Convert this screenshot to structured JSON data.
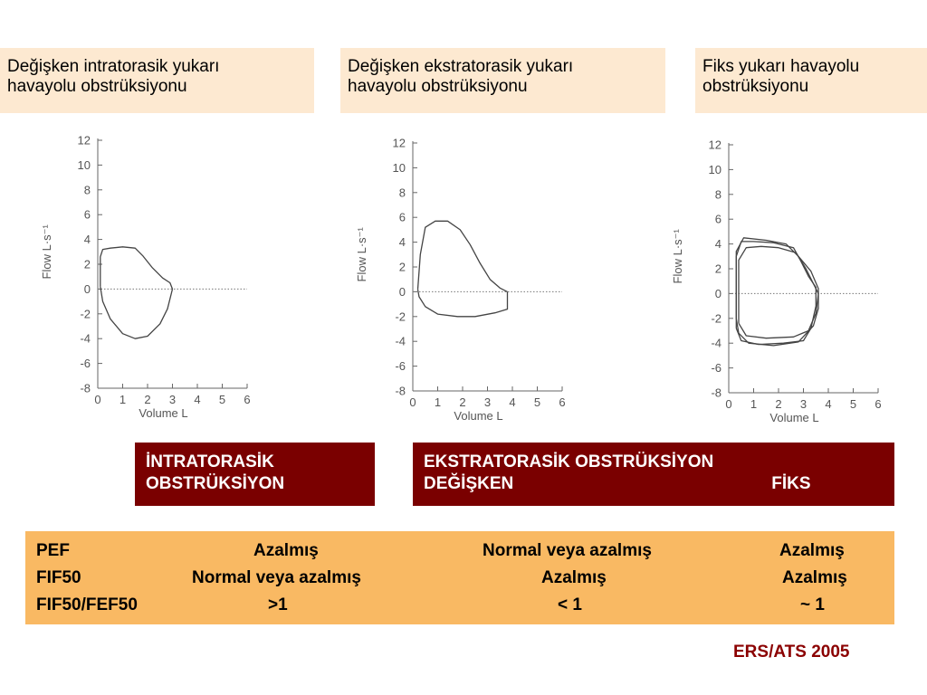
{
  "captions": [
    {
      "line1": "Değişken intratorasik yukarı",
      "line2": "havayolu obstrüksiyonu"
    },
    {
      "line1": "Değişken ekstratorasik yukarı",
      "line2": "havayolu obstrüksiyonu"
    },
    {
      "line1": "Fiks yukarı havayolu",
      "line2": "obstrüksiyonu"
    }
  ],
  "chart_data": [
    {
      "type": "line",
      "xlabel": "Volume L",
      "ylabel": "Flow L·s⁻¹",
      "xlim": [
        0,
        6
      ],
      "ylim": [
        -8,
        12
      ],
      "xticks": [
        "0",
        "1",
        "2",
        "3",
        "4",
        "5",
        "6"
      ],
      "yticks": [
        "12",
        "10",
        "8",
        "6",
        "4",
        "2",
        "0",
        "-2",
        "-4",
        "-6",
        "-8"
      ],
      "baseline": {
        "y": 0,
        "x_end": 6,
        "style": "dotted"
      },
      "series": [
        {
          "values": [
            [
              0.1,
              0.2
            ],
            [
              0.1,
              2.6
            ],
            [
              0.2,
              3.2
            ],
            [
              0.5,
              3.3
            ],
            [
              1.0,
              3.4
            ],
            [
              1.5,
              3.3
            ],
            [
              1.8,
              2.7
            ],
            [
              2.2,
              1.7
            ],
            [
              2.6,
              0.9
            ],
            [
              2.9,
              0.5
            ],
            [
              3.0,
              0.0
            ]
          ]
        },
        {
          "values": [
            [
              3.0,
              0.0
            ],
            [
              2.8,
              -1.6
            ],
            [
              2.5,
              -2.8
            ],
            [
              2.0,
              -3.8
            ],
            [
              1.5,
              -4.0
            ],
            [
              1.0,
              -3.6
            ],
            [
              0.5,
              -2.4
            ],
            [
              0.2,
              -1.0
            ],
            [
              0.1,
              0.2
            ]
          ]
        }
      ]
    },
    {
      "type": "line",
      "xlabel": "Volume L",
      "ylabel": "Flow L·s⁻¹",
      "xlim": [
        0,
        6
      ],
      "ylim": [
        -8,
        12
      ],
      "xticks": [
        "0",
        "1",
        "2",
        "3",
        "4",
        "5",
        "6"
      ],
      "yticks": [
        "12",
        "10",
        "8",
        "6",
        "4",
        "2",
        "0",
        "-2",
        "-4",
        "-6",
        "-8"
      ],
      "baseline": {
        "y": 0,
        "x_end": 6,
        "style": "dotted"
      },
      "series": [
        {
          "values": [
            [
              0.2,
              0.2
            ],
            [
              0.3,
              3.0
            ],
            [
              0.5,
              5.2
            ],
            [
              0.9,
              5.7
            ],
            [
              1.4,
              5.7
            ],
            [
              1.9,
              5.0
            ],
            [
              2.3,
              3.8
            ],
            [
              2.7,
              2.3
            ],
            [
              3.1,
              1.0
            ],
            [
              3.5,
              0.3
            ],
            [
              3.8,
              0.0
            ]
          ]
        },
        {
          "values": [
            [
              3.8,
              0.0
            ],
            [
              3.8,
              -1.4
            ],
            [
              3.3,
              -1.7
            ],
            [
              2.5,
              -2.0
            ],
            [
              1.8,
              -2.0
            ],
            [
              1.0,
              -1.8
            ],
            [
              0.5,
              -1.2
            ],
            [
              0.25,
              -0.4
            ],
            [
              0.2,
              0.2
            ]
          ]
        }
      ]
    },
    {
      "type": "line",
      "xlabel": "Volume L",
      "ylabel": "Flow L·s⁻¹",
      "xlim": [
        0,
        6
      ],
      "ylim": [
        -8,
        12
      ],
      "xticks": [
        "0",
        "1",
        "2",
        "3",
        "4",
        "5",
        "6"
      ],
      "yticks": [
        "12",
        "10",
        "8",
        "6",
        "4",
        "2",
        "0",
        "-2",
        "-4",
        "-6",
        "-8"
      ],
      "baseline": {
        "y": 0,
        "x_end": 6,
        "style": "dotted"
      },
      "series": [
        {
          "values": [
            [
              0.3,
              -2.8
            ],
            [
              0.3,
              3.0
            ],
            [
              0.5,
              4.2
            ],
            [
              1.0,
              4.2
            ],
            [
              1.8,
              4.1
            ],
            [
              2.6,
              3.7
            ],
            [
              2.9,
              2.6
            ],
            [
              3.2,
              1.4
            ],
            [
              3.5,
              0.5
            ],
            [
              3.5,
              -1.0
            ],
            [
              3.3,
              -2.8
            ],
            [
              3.0,
              -3.8
            ],
            [
              2.2,
              -4.0
            ],
            [
              1.2,
              -4.1
            ],
            [
              0.5,
              -3.8
            ],
            [
              0.3,
              -2.8
            ]
          ]
        },
        {
          "values": [
            [
              0.4,
              -2.4
            ],
            [
              0.4,
              2.7
            ],
            [
              0.7,
              3.7
            ],
            [
              1.3,
              3.8
            ],
            [
              2.0,
              3.7
            ],
            [
              2.7,
              3.3
            ],
            [
              3.1,
              2.0
            ],
            [
              3.4,
              0.8
            ],
            [
              3.6,
              0.0
            ],
            [
              3.5,
              -1.6
            ],
            [
              3.2,
              -3.0
            ],
            [
              2.6,
              -3.5
            ],
            [
              1.5,
              -3.6
            ],
            [
              0.7,
              -3.4
            ],
            [
              0.4,
              -2.4
            ]
          ]
        },
        {
          "values": [
            [
              0.3,
              -2.0
            ],
            [
              0.3,
              3.4
            ],
            [
              0.6,
              4.5
            ],
            [
              1.5,
              4.3
            ],
            [
              2.3,
              4.0
            ],
            [
              2.8,
              3.0
            ],
            [
              3.3,
              1.8
            ],
            [
              3.6,
              0.4
            ],
            [
              3.6,
              -1.2
            ],
            [
              3.4,
              -2.6
            ],
            [
              2.8,
              -3.9
            ],
            [
              1.8,
              -4.2
            ],
            [
              0.8,
              -4.0
            ],
            [
              0.4,
              -3.2
            ],
            [
              0.3,
              -2.0
            ]
          ]
        }
      ]
    }
  ],
  "classes": {
    "intra_title_line1": "İNTRATORASİK",
    "intra_title_line2": "OBSTRÜKSİYON",
    "extra_title": "EKSTRATORASİK OBSTRÜKSİYON",
    "extra_variable": "DEĞİŞKEN",
    "extra_fixed": "FİKS"
  },
  "table": {
    "rows": [
      {
        "label": "PEF",
        "intra": "Azalmış",
        "variable": "Normal veya azalmış",
        "fixed": "Azalmış"
      },
      {
        "label": "FIF50",
        "intra": "Normal veya azalmış",
        "variable": "Azalmış",
        "fixed": "Azalmış"
      },
      {
        "label": "FIF50/FEF50",
        "intra": ">1",
        "variable": "< 1",
        "fixed": "~ 1"
      }
    ]
  },
  "source": "ERS/ATS 2005"
}
